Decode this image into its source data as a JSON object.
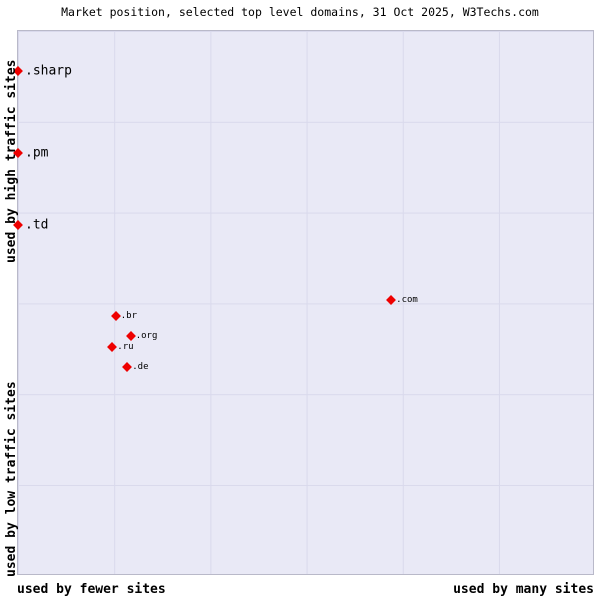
{
  "title": "Market position, selected top level domains, 31 Oct 2025, W3Techs.com",
  "axes": {
    "y_top": "used by high traffic sites",
    "y_bottom": "used by low traffic sites",
    "x_left": "used by fewer sites",
    "x_right": "used by many sites"
  },
  "colors": {
    "plot_bg": "#e9e9f6",
    "grid_line": "#d9d9ec",
    "marker": "#ee0000"
  },
  "chart_data": {
    "type": "scatter",
    "title": "Market position, selected top level domains, 31 Oct 2025, W3Techs.com",
    "x_axis": {
      "label_left": "used by fewer sites",
      "label_right": "used by many sites",
      "scale": "qualitative"
    },
    "y_axis": {
      "label_top": "used by high traffic sites",
      "label_bottom": "used by low traffic sites",
      "scale": "qualitative"
    },
    "grid": true,
    "marker_shape": "diamond",
    "points": [
      {
        "label": ".sharp",
        "x_pct": 0,
        "y_pct": 7.3,
        "emphasis": "large"
      },
      {
        "label": ".pm",
        "x_pct": 0,
        "y_pct": 22.4,
        "emphasis": "large"
      },
      {
        "label": ".td",
        "x_pct": 0,
        "y_pct": 35.8,
        "emphasis": "large"
      },
      {
        "label": ".br",
        "x_pct": 17.0,
        "y_pct": 52.5,
        "emphasis": "small"
      },
      {
        "label": ".org",
        "x_pct": 19.6,
        "y_pct": 56.1,
        "emphasis": "small"
      },
      {
        "label": ".ru",
        "x_pct": 16.4,
        "y_pct": 58.2,
        "emphasis": "small"
      },
      {
        "label": ".de",
        "x_pct": 19.0,
        "y_pct": 61.8,
        "emphasis": "small"
      },
      {
        "label": ".com",
        "x_pct": 64.9,
        "y_pct": 49.5,
        "emphasis": "small"
      }
    ]
  }
}
